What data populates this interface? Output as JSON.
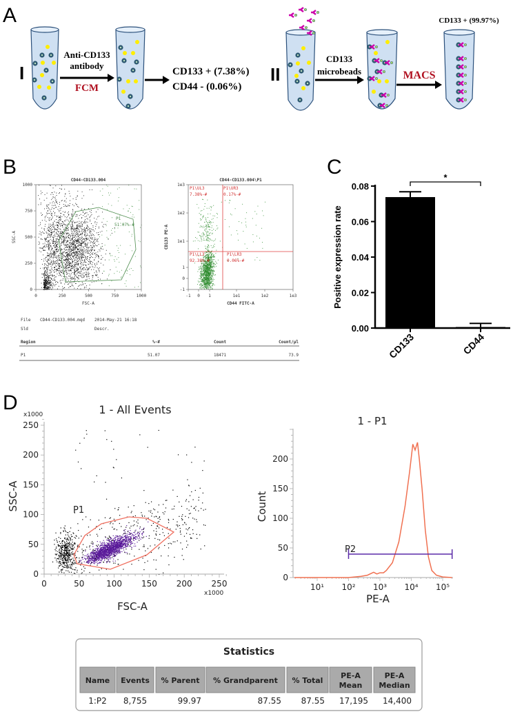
{
  "panel_labels": {
    "a": "A",
    "b": "B",
    "c": "C",
    "d": "D"
  },
  "panel_a": {
    "route_1": {
      "numeral": "I",
      "step_label_1": "Anti-CD133",
      "step_label_2": "antibody",
      "method": "FCM",
      "result_1": "CD133 + (7.38%)",
      "result_2": "CD44 - (0.06%)"
    },
    "route_2": {
      "numeral": "II",
      "step_label_1": "CD133",
      "step_label_2": "microbeads",
      "method": "MACS",
      "result": "CD133 + (99.97%)"
    },
    "colors": {
      "tube": "#cfe0f2",
      "cell": "#2f5a72",
      "unlabeled_cell": "#ffee00",
      "antibody": "#cc00aa",
      "bead": "#a8d86a",
      "method_text": "#b01020"
    }
  },
  "panel_b": {
    "file_info": {
      "file_label": "File",
      "file_name": "CD44-CD133.004.mqd",
      "date": "2014-May-21 16:18",
      "sld_label": "Sld",
      "descr_label": "Descr."
    },
    "table": {
      "headers": [
        "Region",
        "%-#",
        "Count",
        "Count/µl"
      ],
      "rows": [
        [
          "P1",
          "51.07",
          "18471",
          "73.9"
        ]
      ]
    }
  },
  "panel_d": {
    "statistics": {
      "title": "Statistics",
      "headers": [
        "Name",
        "Events",
        "% Parent",
        "% Grandparent",
        "% Total",
        "PE-A Mean",
        "PE-A Median"
      ],
      "rows": [
        [
          "1:P2",
          "8,755",
          "99.97",
          "87.55",
          "87.55",
          "17,195",
          "14,400"
        ]
      ]
    }
  },
  "chart_data": [
    {
      "type": "scatter",
      "title": "CD44-CD133.004",
      "xlabel": "FSC-A",
      "ylabel": "SSC-A",
      "xlim": [
        0,
        1000
      ],
      "ylim": [
        0,
        1000
      ],
      "xticks": [
        "0",
        "250",
        "500",
        "750",
        "1000"
      ],
      "yticks": [
        "0",
        "250",
        "500",
        "750",
        "1000"
      ],
      "gate": {
        "name": "P1",
        "value": "51.07%-#",
        "color": "#4a8a4a"
      },
      "point_color": "#000000"
    },
    {
      "type": "scatter",
      "title": "CD44-CD133.004\\P1",
      "xlabel": "CD44  FITC-A",
      "ylabel": "CD133 PE-A",
      "xscale": "log",
      "yscale": "log",
      "xticks": [
        "-1",
        "0",
        "1",
        "1e1",
        "1e2",
        "1e3"
      ],
      "yticks": [
        "-1",
        "0",
        "1",
        "1e1",
        "1e2",
        "1e3"
      ],
      "quadrants": [
        {
          "name": "P1\\UL3",
          "value": "7.38%-#"
        },
        {
          "name": "P1\\UR3",
          "value": "0.17%-#"
        },
        {
          "name": "P1\\LL3",
          "value": "92.38%-#"
        },
        {
          "name": "P1\\LR3",
          "value": "0.06%-#"
        }
      ],
      "point_color": "#2e8b2e",
      "gate_color": "#e04040"
    },
    {
      "type": "bar",
      "categories": [
        "CD133",
        "CD44"
      ],
      "values": [
        0.0738,
        0.0006
      ],
      "errors": [
        0.003,
        0.002
      ],
      "ylabel": "Positive expression rate",
      "ylim": [
        0,
        0.08
      ],
      "yticks": [
        "0.00",
        "0.02",
        "0.04",
        "0.06",
        "0.08"
      ],
      "significance": "*",
      "bar_color": "#000000"
    },
    {
      "type": "scatter",
      "title": "1 - All Events",
      "xlabel": "FSC-A",
      "ylabel": "SSC-A",
      "x_multiplier": "x1000",
      "y_multiplier": "x1000",
      "xlim": [
        0,
        260
      ],
      "ylim": [
        0,
        260
      ],
      "xticks": [
        "0",
        "50",
        "100",
        "150",
        "200",
        "250"
      ],
      "yticks": [
        "0",
        "50",
        "100",
        "150",
        "200",
        "250"
      ],
      "gate": {
        "name": "P1",
        "color": "#f07060"
      },
      "gated_color": "#5a1a9a",
      "ungated_color": "#000000"
    },
    {
      "type": "line",
      "title": "1 - P1",
      "xlabel": "PE-A",
      "ylabel": "Count",
      "xscale": "log",
      "xticks": [
        "10¹",
        "10²",
        "10³",
        "10⁴",
        "10⁵"
      ],
      "yticks": [
        "0",
        "50",
        "100",
        "150",
        "200"
      ],
      "ylim": [
        0,
        250
      ],
      "series": [
        {
          "color": "#f07050",
          "x": [
            100,
            250,
            400,
            630,
            800,
            1000,
            1300,
            1600,
            2500,
            4000,
            6300,
            8900,
            11200,
            13200,
            15800,
            18000,
            22000,
            28000,
            35000,
            45000,
            63000,
            100000,
            200000
          ],
          "y": [
            0,
            2,
            4,
            9,
            6,
            8,
            8,
            12,
            25,
            60,
            120,
            180,
            225,
            215,
            228,
            200,
            150,
            80,
            35,
            12,
            4,
            1,
            0
          ]
        }
      ],
      "gate": {
        "name": "P2",
        "range": [
          100,
          200000
        ],
        "color": "#5a2aa8"
      }
    }
  ]
}
